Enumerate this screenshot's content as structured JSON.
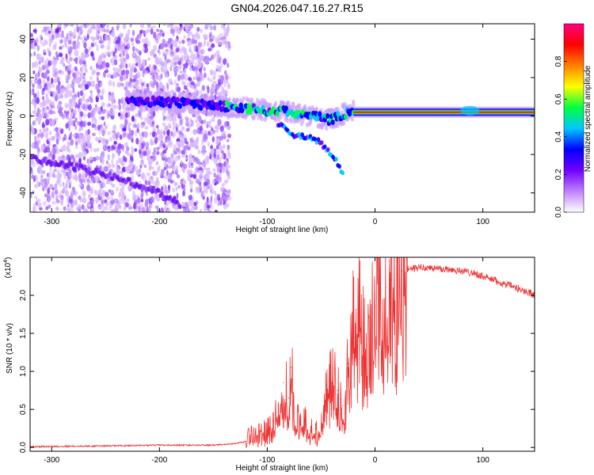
{
  "title": "GN04.2026.047.16.27.R15",
  "chart_data": [
    {
      "type": "heatmap",
      "title": "GN04.2026.047.16.27.R15",
      "xlabel": "Height of straight line (km)",
      "ylabel": "Frequency (Hz)",
      "xlim": [
        -320,
        148
      ],
      "ylim": [
        -50,
        48
      ],
      "xticks": [
        -300,
        -200,
        -100,
        0,
        100
      ],
      "xtick_labels": [
        "-300",
        "-200",
        "-100",
        "0",
        "100"
      ],
      "yticks": [
        -40,
        -20,
        0,
        20,
        40
      ],
      "ytick_labels": [
        "-40",
        "-20",
        "0",
        "20",
        "40"
      ],
      "colorbar": {
        "label": "Normalized spectral amplitude",
        "range": [
          0,
          1
        ],
        "ticks": [
          0.0,
          0.2,
          0.4,
          0.6,
          0.8
        ],
        "tick_labels": [
          "0.0",
          "0.2",
          "0.4",
          "0.6",
          "0.8"
        ],
        "colors": [
          "#ffffff",
          "#c080ff",
          "#7000ff",
          "#0000ff",
          "#00c8ff",
          "#00ff40",
          "#ffff00",
          "#ff8000",
          "#ff0000",
          "#ff0080"
        ]
      },
      "features": {
        "noise_region_x": [
          -320,
          -135
        ],
        "central_trace": [
          [
            -230,
            8
          ],
          [
            -180,
            7
          ],
          [
            -140,
            5
          ],
          [
            -100,
            3
          ],
          [
            -80,
            2
          ],
          [
            -60,
            0
          ],
          [
            -40,
            -2
          ],
          [
            -30,
            1
          ],
          [
            -20,
            3
          ],
          [
            -10,
            2
          ],
          [
            0,
            2
          ],
          [
            50,
            2
          ],
          [
            100,
            2
          ],
          [
            148,
            2
          ]
        ],
        "secondary_trace": [
          [
            -320,
            -22
          ],
          [
            -280,
            -26
          ],
          [
            -240,
            -32
          ],
          [
            -200,
            -40
          ],
          [
            -180,
            -46
          ]
        ],
        "branch_trace": [
          [
            -90,
            -4
          ],
          [
            -75,
            -10
          ],
          [
            -55,
            -12
          ],
          [
            -45,
            -17
          ],
          [
            -35,
            -24
          ],
          [
            -30,
            -30
          ]
        ],
        "steady_line_x": [
          -20,
          148
        ],
        "steady_line_freq": 2
      }
    },
    {
      "type": "line",
      "xlabel": "Height of straight line (km)",
      "ylabel": "SNR (10 * v/v)",
      "scale_label": "(x10",
      "scale_exponent": "4",
      "xlim": [
        -320,
        148
      ],
      "ylim": [
        -0.05,
        2.5
      ],
      "xticks": [
        -300,
        -200,
        -100,
        0,
        100
      ],
      "xtick_labels": [
        "-300",
        "-200",
        "-100",
        "0",
        "100"
      ],
      "yticks": [
        0.0,
        0.5,
        1.0,
        1.5,
        2.0
      ],
      "ytick_labels": [
        "0.0",
        "0.5",
        "1.0",
        "1.5",
        "2.0"
      ],
      "color": "#ee3333",
      "series": [
        {
          "name": "SNR",
          "x": [
            -320,
            -250,
            -200,
            -150,
            -130,
            -120,
            -110,
            -100,
            -95,
            -90,
            -85,
            -80,
            -78,
            -75,
            -70,
            -65,
            -60,
            -55,
            -50,
            -45,
            -40,
            -35,
            -30,
            -28,
            -25,
            -20,
            -15,
            -10,
            -5,
            0,
            5,
            10,
            15,
            20,
            25,
            30,
            35,
            40,
            45,
            50,
            60,
            70,
            80,
            90,
            100,
            110,
            120,
            130,
            140,
            148
          ],
          "y": [
            0.01,
            0.02,
            0.03,
            0.03,
            0.05,
            0.08,
            0.14,
            0.22,
            0.35,
            0.55,
            0.85,
            0.65,
            1.05,
            0.45,
            0.35,
            0.3,
            0.22,
            0.18,
            0.45,
            0.7,
            0.85,
            0.75,
            0.55,
            0.3,
            1.1,
            1.7,
            1.85,
            1.5,
            1.3,
            1.85,
            2.05,
            2.1,
            2.2,
            2.28,
            2.32,
            2.34,
            2.35,
            2.36,
            2.37,
            2.36,
            2.35,
            2.34,
            2.32,
            2.3,
            2.25,
            2.2,
            2.15,
            2.1,
            2.05,
            2.01
          ]
        }
      ]
    }
  ]
}
